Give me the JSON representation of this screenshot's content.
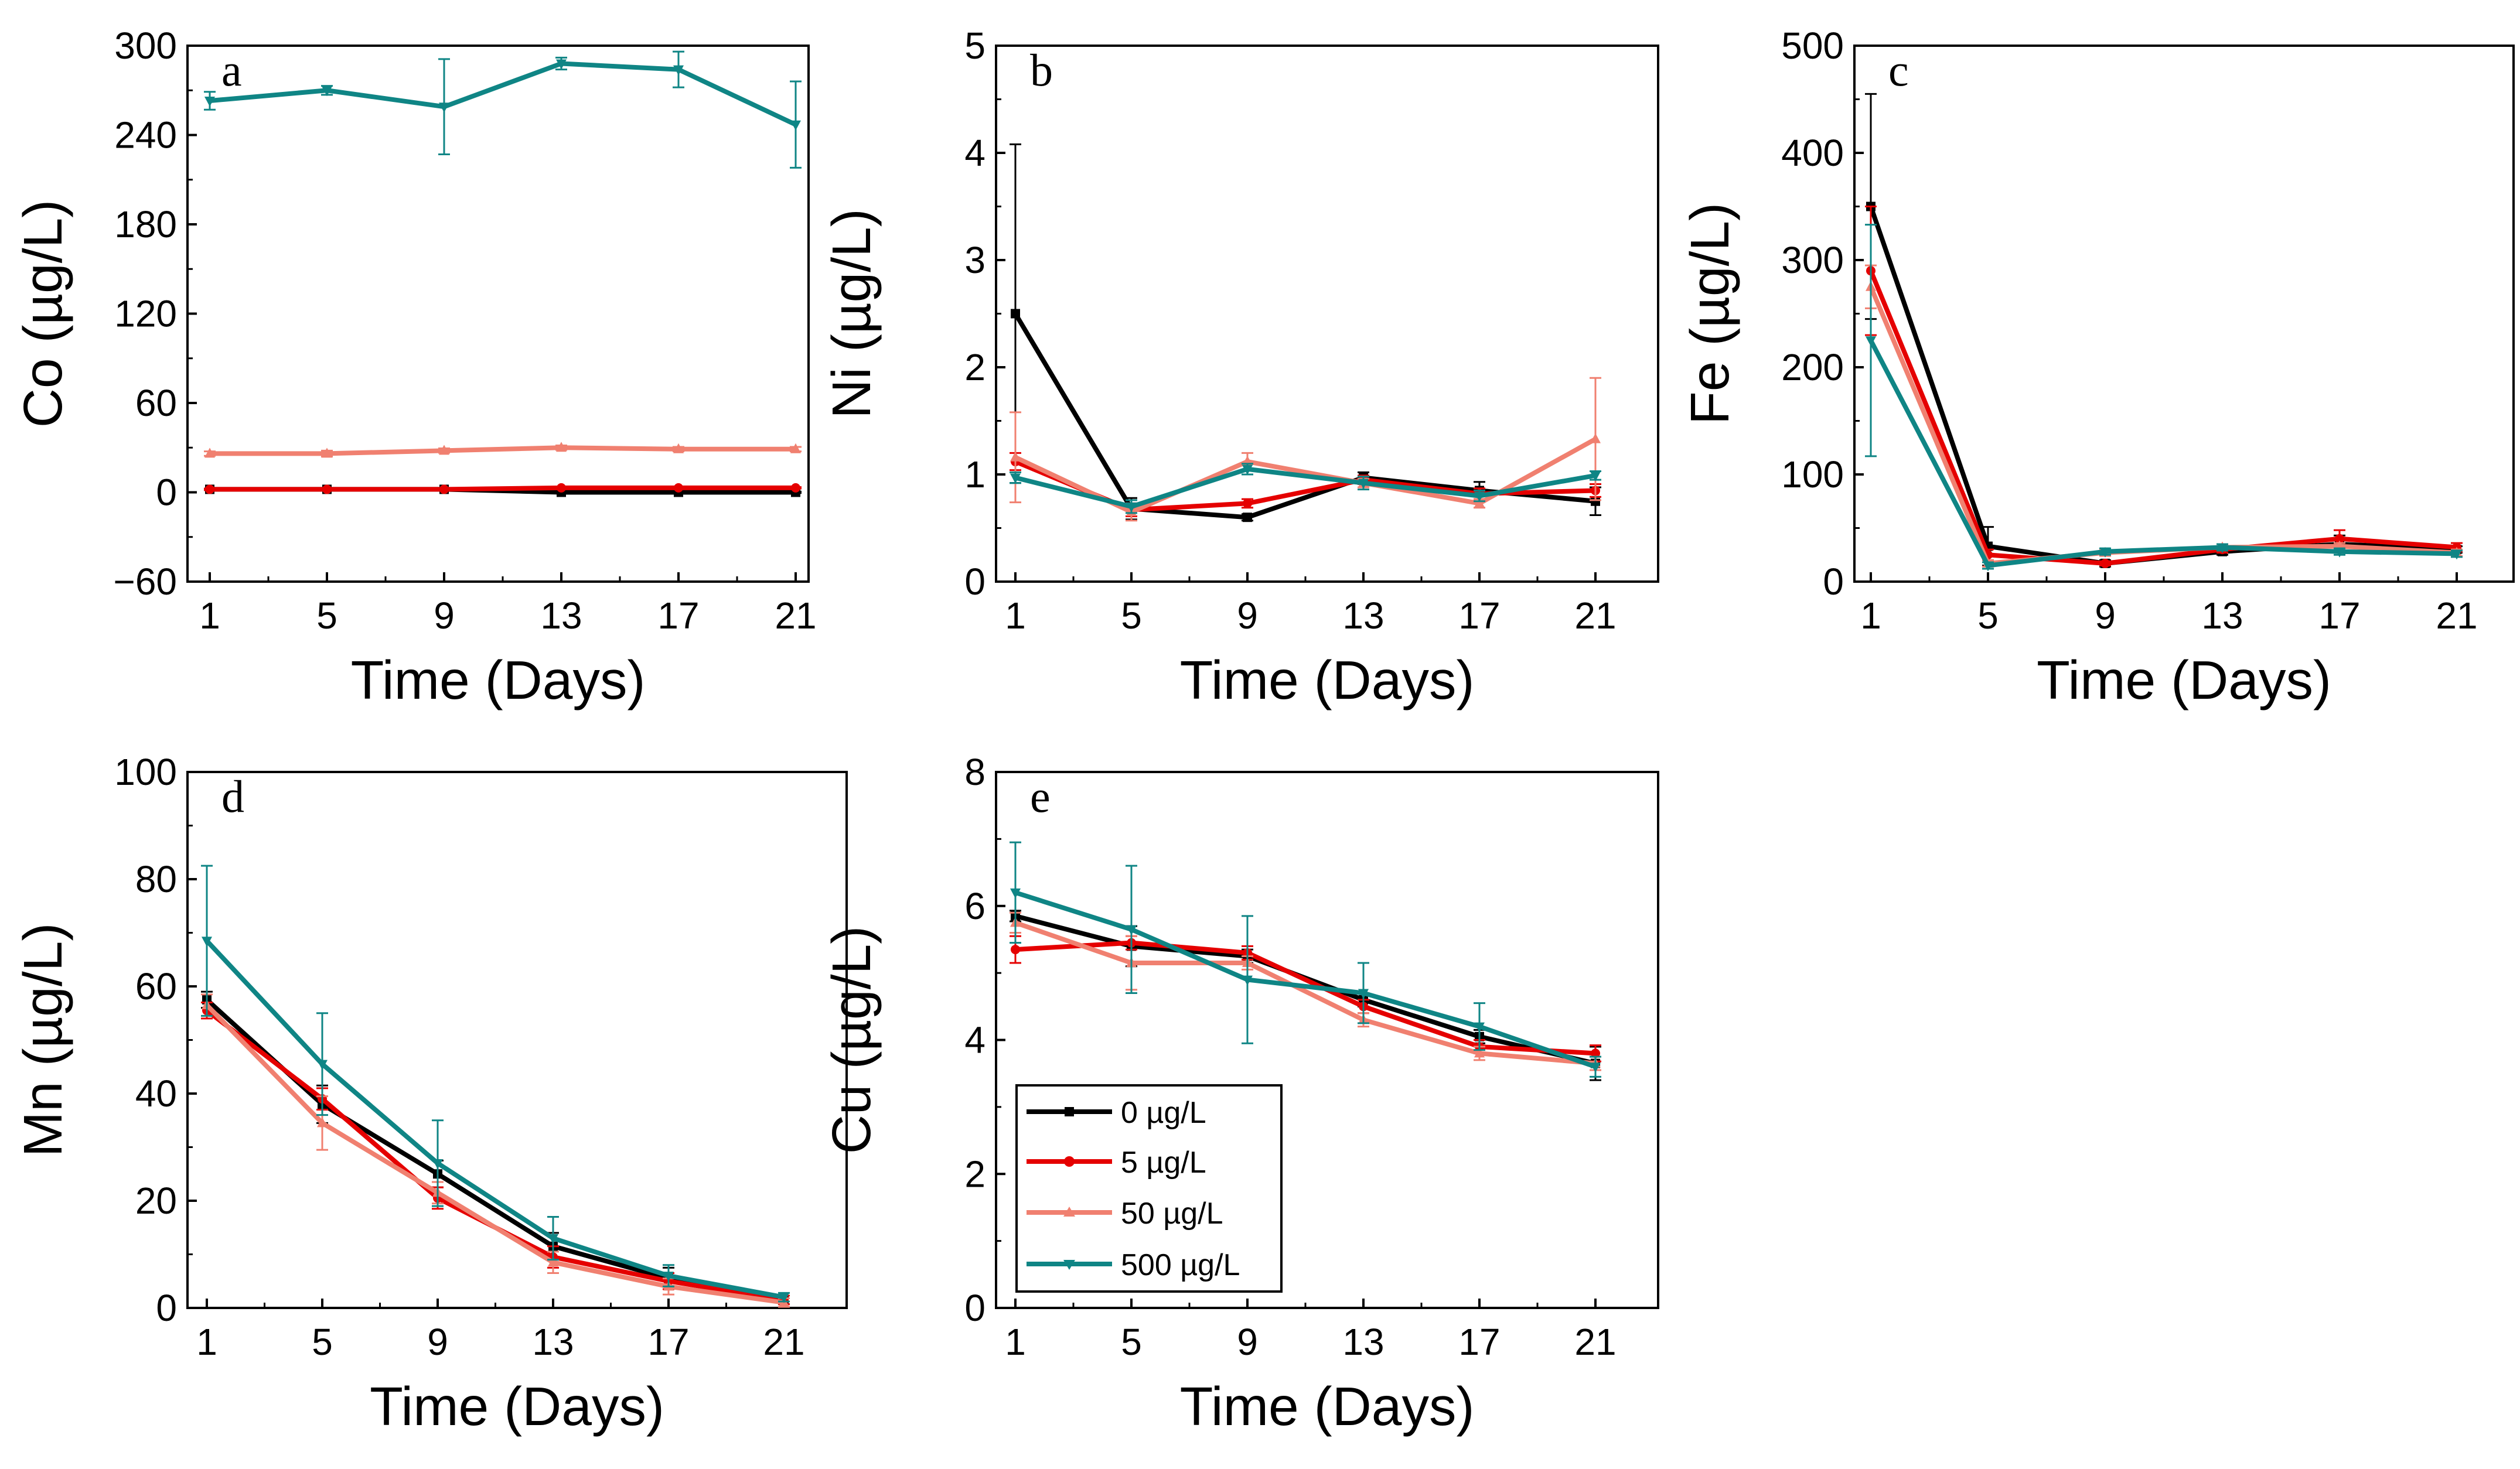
{
  "legend": {
    "entries": [
      {
        "label": "0 µg/L",
        "color": "#000000",
        "marker": "square"
      },
      {
        "label": "5 µg/L",
        "color": "#e50000",
        "marker": "circle"
      },
      {
        "label": "50 µg/L",
        "color": "#f08070",
        "marker": "triangle-up"
      },
      {
        "label": "500 µg/L",
        "color": "#0f8585",
        "marker": "triangle-down"
      }
    ]
  },
  "chart_data": [
    {
      "type": "line",
      "panel": "a",
      "title": "",
      "xlabel": "Time (Days)",
      "ylabel": "Co (µg/L)",
      "x": [
        1,
        5,
        9,
        13,
        17,
        21
      ],
      "xticks": [
        "1",
        "5",
        "9",
        "13",
        "17",
        "21"
      ],
      "yticks": [
        "−60",
        "0",
        "60",
        "120",
        "180",
        "240",
        "300"
      ],
      "ylim": [
        -60,
        300
      ],
      "series": [
        {
          "name": "0 µg/L",
          "values": [
            2,
            2,
            2,
            0,
            0,
            0
          ],
          "errors": [
            0.5,
            0.5,
            0.5,
            0.5,
            0.5,
            0.5
          ]
        },
        {
          "name": "5 µg/L",
          "values": [
            2,
            2,
            2,
            3,
            3,
            3
          ],
          "errors": [
            0.5,
            0.5,
            0.5,
            0.5,
            0.5,
            0.5
          ]
        },
        {
          "name": "50 µg/L",
          "values": [
            26,
            26,
            28,
            30,
            29,
            29
          ],
          "errors": [
            1.5,
            2,
            1.5,
            1.5,
            1.5,
            1.5
          ]
        },
        {
          "name": "500 µg/L",
          "values": [
            263,
            270,
            259,
            288,
            284,
            247
          ],
          "errors": [
            6,
            3,
            32,
            4,
            12,
            29
          ]
        }
      ]
    },
    {
      "type": "line",
      "panel": "b",
      "title": "",
      "xlabel": "Time (Days)",
      "ylabel": "Ni (µg/L)",
      "x": [
        1,
        5,
        9,
        13,
        17,
        21
      ],
      "xticks": [
        "1",
        "5",
        "9",
        "13",
        "17",
        "21"
      ],
      "yticks": [
        "0",
        "1",
        "2",
        "3",
        "4",
        "5"
      ],
      "ylim": [
        0,
        5
      ],
      "series": [
        {
          "name": "0 µg/L",
          "values": [
            2.5,
            0.68,
            0.6,
            0.97,
            0.85,
            0.75
          ],
          "errors": [
            1.58,
            0.1,
            0.03,
            0.05,
            0.08,
            0.13
          ]
        },
        {
          "name": "5 µg/L",
          "values": [
            1.12,
            0.67,
            0.73,
            0.95,
            0.82,
            0.85
          ],
          "errors": [
            0.08,
            0.06,
            0.04,
            0.04,
            0.05,
            0.06
          ]
        },
        {
          "name": "50 µg/L",
          "values": [
            1.16,
            0.65,
            1.12,
            0.92,
            0.73,
            1.33
          ],
          "errors": [
            0.42,
            0.08,
            0.08,
            0.04,
            0.04,
            0.57
          ]
        },
        {
          "name": "500 µg/L",
          "values": [
            0.97,
            0.7,
            1.05,
            0.92,
            0.8,
            0.99
          ],
          "errors": [
            0.05,
            0.06,
            0.05,
            0.06,
            0.05,
            0.04
          ]
        }
      ]
    },
    {
      "type": "line",
      "panel": "c",
      "title": "",
      "xlabel": "Time (Days)",
      "ylabel": "Fe (µg/L)",
      "x": [
        1,
        5,
        9,
        13,
        17,
        21
      ],
      "xticks": [
        "1",
        "5",
        "9",
        "13",
        "17",
        "21"
      ],
      "yticks": [
        "0",
        "100",
        "200",
        "300",
        "400",
        "500"
      ],
      "ylim": [
        0,
        500
      ],
      "series": [
        {
          "name": "0 µg/L",
          "values": [
            350,
            33,
            17,
            28,
            35,
            30
          ],
          "errors": [
            105,
            18,
            3,
            3,
            8,
            3
          ]
        },
        {
          "name": "5 µg/L",
          "values": [
            290,
            25,
            17,
            30,
            40,
            32
          ],
          "errors": [
            60,
            5,
            2,
            3,
            8,
            4
          ]
        },
        {
          "name": "50 µg/L",
          "values": [
            275,
            17,
            27,
            32,
            33,
            27
          ],
          "errors": [
            20,
            3,
            3,
            3,
            3,
            3
          ]
        },
        {
          "name": "500 µg/L",
          "values": [
            225,
            15,
            28,
            32,
            28,
            26
          ],
          "errors": [
            108,
            3,
            3,
            3,
            3,
            3
          ]
        }
      ]
    },
    {
      "type": "line",
      "panel": "d",
      "title": "",
      "xlabel": "Time (Days)",
      "ylabel": "Mn (µg/L)",
      "x": [
        1,
        5,
        9,
        13,
        17,
        21
      ],
      "xticks": [
        "1",
        "5",
        "9",
        "13",
        "17",
        "21"
      ],
      "yticks": [
        "0",
        "20",
        "40",
        "60",
        "80",
        "100"
      ],
      "ylim": [
        0,
        100
      ],
      "series": [
        {
          "name": "0 µg/L",
          "values": [
            57.5,
            38,
            25,
            11.5,
            5.5,
            1.5
          ],
          "errors": [
            1.5,
            3.5,
            2.5,
            2.5,
            2,
            0.8
          ]
        },
        {
          "name": "5 µg/L",
          "values": [
            55.5,
            39,
            20.5,
            9.5,
            5,
            1.5
          ],
          "errors": [
            1.5,
            2,
            2,
            2,
            1.5,
            0.8
          ]
        },
        {
          "name": "50 µg/L",
          "values": [
            56.5,
            34.5,
            21.5,
            8.5,
            4,
            1
          ],
          "errors": [
            2,
            5,
            2,
            2,
            1.5,
            0.8
          ]
        },
        {
          "name": "500 µg/L",
          "values": [
            68.5,
            45.5,
            27,
            13,
            6,
            2
          ],
          "errors": [
            14,
            9.5,
            8,
            4,
            2,
            0.8
          ]
        }
      ]
    },
    {
      "type": "line",
      "panel": "e",
      "title": "",
      "xlabel": "Time (Days)",
      "ylabel": "Cu (µg/L)",
      "x": [
        1,
        5,
        9,
        13,
        17,
        21
      ],
      "xticks": [
        "1",
        "5",
        "9",
        "13",
        "17",
        "21"
      ],
      "yticks": [
        "0",
        "2",
        "4",
        "6",
        "8"
      ],
      "ylim": [
        0,
        8
      ],
      "series": [
        {
          "name": "0 µg/L",
          "values": [
            5.85,
            5.4,
            5.25,
            4.6,
            4.05,
            3.65
          ],
          "errors": [
            0.08,
            0.3,
            0.1,
            0.1,
            0.1,
            0.25
          ]
        },
        {
          "name": "5 µg/L",
          "values": [
            5.35,
            5.45,
            5.3,
            4.5,
            3.9,
            3.8
          ],
          "errors": [
            0.2,
            0.1,
            0.1,
            0.1,
            0.1,
            0.12
          ]
        },
        {
          "name": "50 µg/L",
          "values": [
            5.75,
            5.15,
            5.15,
            4.3,
            3.8,
            3.65
          ],
          "errors": [
            0.15,
            0.4,
            0.1,
            0.1,
            0.1,
            0.1
          ]
        },
        {
          "name": "500 µg/L",
          "values": [
            6.2,
            5.65,
            4.9,
            4.7,
            4.2,
            3.6
          ],
          "errors": [
            0.75,
            0.95,
            0.95,
            0.45,
            0.35,
            0.15
          ]
        }
      ]
    }
  ]
}
